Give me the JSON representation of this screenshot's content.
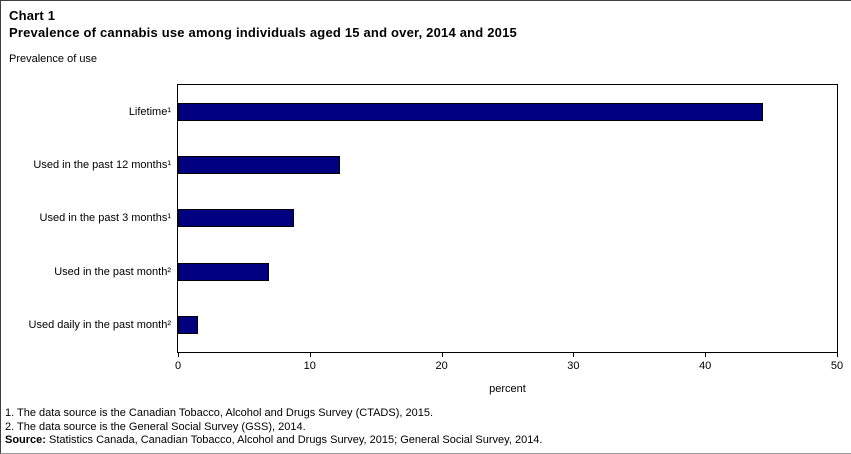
{
  "chart_data": {
    "type": "bar",
    "orientation": "horizontal",
    "title": "Chart 1",
    "subtitle": "Prevalence of cannabis use among individuals aged 15 and over, 2014 and 2015",
    "top_axis_label": "Prevalence of use",
    "xlabel": "percent",
    "categories": [
      "Lifetime¹",
      "Used in the past 12 months¹",
      "Used in the past 3 months¹",
      "Used in the past month²",
      "Used daily in the past month²"
    ],
    "values": [
      44.4,
      12.3,
      8.8,
      6.9,
      1.5
    ],
    "xlim": [
      0,
      50
    ],
    "xticks": [
      0,
      10,
      20,
      30,
      40,
      50
    ],
    "bar_color": "#000080",
    "bar_border_color": "#000000",
    "grid": false,
    "legend": "none",
    "footnotes": [
      "1. The data source is the Canadian Tobacco, Alcohol and Drugs Survey (CTADS), 2015.",
      "2. The data source is the General Social Survey (GSS), 2014."
    ],
    "source_label": "Source:",
    "source_text": " Statistics Canada, Canadian Tobacco, Alcohol and Drugs Survey, 2015; General Social Survey, 2014."
  }
}
